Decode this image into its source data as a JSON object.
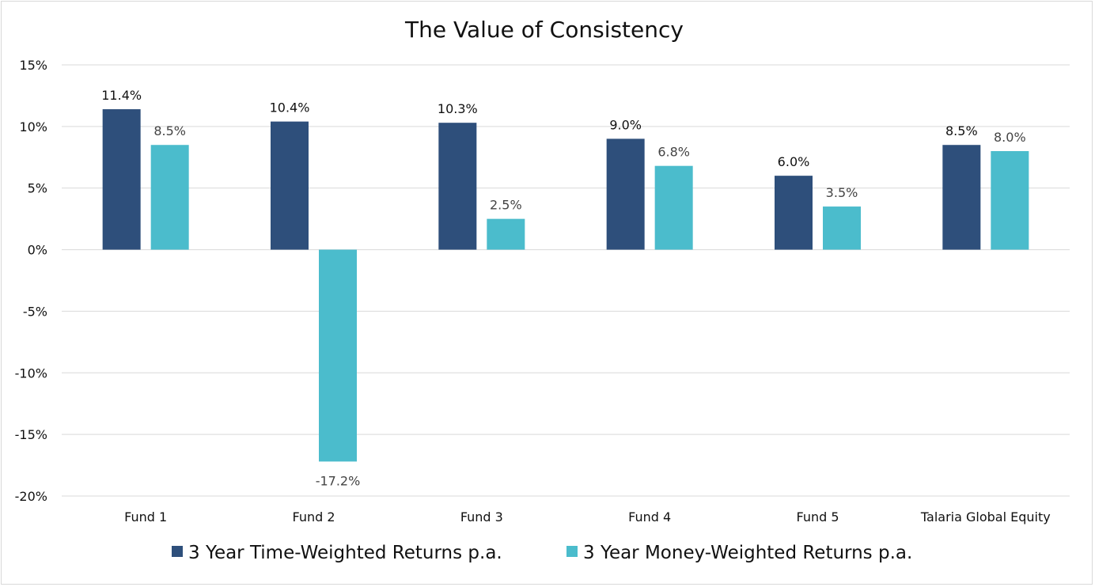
{
  "chart_data": {
    "type": "bar",
    "title": "The Value of Consistency",
    "categories": [
      "Fund 1",
      "Fund 2",
      "Fund 3",
      "Fund 4",
      "Fund 5",
      "Talaria Global Equity"
    ],
    "series": [
      {
        "name": "3 Year Time-Weighted Returns p.a.",
        "color": "#2e4f7b",
        "values": [
          11.4,
          10.4,
          10.3,
          9.0,
          6.0,
          8.5
        ],
        "labels": [
          "11.4%",
          "10.4%",
          "10.3%",
          "9.0%",
          "6.0%",
          "8.5%"
        ],
        "label_color": "#111111"
      },
      {
        "name": "3 Year Money-Weighted Returns p.a.",
        "color": "#4bbccc",
        "values": [
          8.5,
          -17.2,
          2.5,
          6.8,
          3.5,
          8.0
        ],
        "labels": [
          "8.5%",
          "-17.2%",
          "2.5%",
          "6.8%",
          "3.5%",
          "8.0%"
        ],
        "label_color": "#444444"
      }
    ],
    "ylim": [
      -20,
      15
    ],
    "yticks": [
      15,
      10,
      5,
      0,
      -5,
      -10,
      -15,
      -20
    ],
    "ytick_labels": [
      "15%",
      "10%",
      "5%",
      "0%",
      "-5%",
      "-10%",
      "-15%",
      "-20%"
    ],
    "grid": true,
    "legend_position": "bottom",
    "xlabel": "",
    "ylabel": ""
  }
}
